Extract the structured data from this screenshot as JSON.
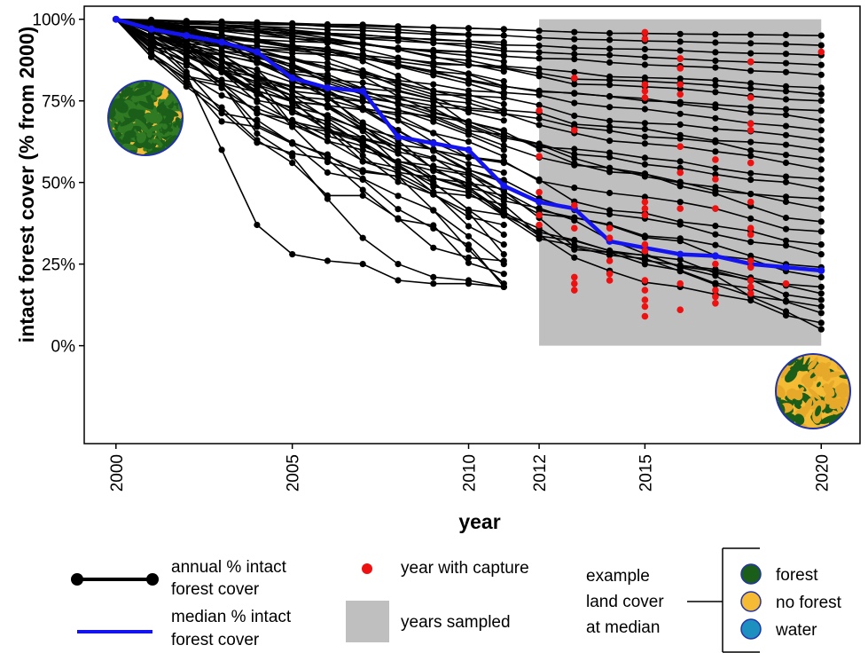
{
  "chart_data": {
    "type": "line",
    "xlabel": "year",
    "ylabel": "intact forest cover (% from 2000)",
    "x_ticks": [
      2000,
      2005,
      2010,
      2012,
      2015,
      2020
    ],
    "y_ticks": [
      {
        "value": 100,
        "label": "100%"
      },
      {
        "value": 75,
        "label": "75%"
      },
      {
        "value": 50,
        "label": "50%"
      },
      {
        "value": 25,
        "label": "25%"
      },
      {
        "value": 0,
        "label": "0%"
      }
    ],
    "xlim": [
      1999.1,
      2021.1
    ],
    "ylim": [
      -30,
      104
    ],
    "sampled_period": [
      2012,
      2020
    ],
    "colors": {
      "series": "#000000",
      "median": "#1414f0",
      "capture": "#ee1111",
      "sampled": "#bfbfbf",
      "forest": "#1a5e1a",
      "no_forest": "#f5bb35",
      "water": "#1e90c0",
      "circle_border": "#2233aa"
    },
    "median": {
      "x": [
        2000,
        2001,
        2002,
        2003,
        2004,
        2005,
        2006,
        2007,
        2008,
        2009,
        2010,
        2011,
        2012,
        2013,
        2014,
        2015,
        2016,
        2017,
        2018,
        2019,
        2020
      ],
      "y": [
        100,
        97,
        95,
        93,
        90,
        82,
        79,
        78,
        64,
        62,
        60,
        49,
        44,
        42,
        32,
        30,
        28,
        27.5,
        25,
        24,
        23
      ]
    },
    "series_end_2011": [
      97,
      95,
      93,
      91,
      89,
      87,
      84,
      81,
      79,
      77,
      74,
      72,
      69,
      66,
      63,
      60,
      58,
      56,
      53,
      50,
      48,
      45,
      42,
      40,
      37,
      34,
      31,
      28,
      25,
      22,
      19,
      18
    ],
    "series_end_2020": [
      95,
      92,
      89,
      86,
      83,
      79,
      77,
      75,
      72,
      69,
      66,
      63,
      60,
      57,
      54,
      51,
      48,
      45,
      42,
      38,
      35,
      31,
      28,
      24,
      21,
      18,
      16,
      14,
      12,
      10,
      7,
      5
    ],
    "notable_series": [
      {
        "x": [
          2000,
          2001,
          2002,
          2003,
          2004,
          2005,
          2006,
          2007,
          2008,
          2009,
          2010,
          2011
        ],
        "y": [
          100,
          93,
          83,
          60,
          37,
          28,
          26,
          25,
          20,
          19,
          19,
          18
        ]
      },
      {
        "x": [
          2000,
          2001,
          2002,
          2003,
          2004,
          2005,
          2006,
          2007,
          2008,
          2009,
          2010,
          2011
        ],
        "y": [
          100,
          90,
          80,
          73,
          63,
          56,
          46,
          46,
          39,
          30,
          27,
          26
        ]
      },
      {
        "x": [
          2000,
          2001,
          2002,
          2003,
          2004,
          2005,
          2006,
          2007,
          2008,
          2009,
          2010,
          2011
        ],
        "y": [
          100,
          96,
          91,
          80,
          65,
          58,
          45,
          33,
          25,
          21,
          20,
          18
        ]
      }
    ],
    "captures": [
      {
        "x": 2012,
        "y": [
          72,
          58,
          47,
          40,
          37
        ]
      },
      {
        "x": 2013,
        "y": [
          82,
          66,
          43,
          36,
          21,
          19,
          17
        ]
      },
      {
        "x": 2014,
        "y": [
          36,
          33,
          26,
          22,
          20
        ]
      },
      {
        "x": 2015,
        "y": [
          96,
          94,
          80,
          78,
          76,
          44,
          42,
          40,
          31,
          29,
          20,
          17,
          14,
          12,
          9
        ]
      },
      {
        "x": 2016,
        "y": [
          88,
          85,
          80,
          77,
          61,
          53,
          42,
          19,
          11
        ]
      },
      {
        "x": 2017,
        "y": [
          57,
          51,
          42,
          25,
          17,
          15,
          13
        ]
      },
      {
        "x": 2018,
        "y": [
          87,
          76,
          68,
          66,
          56,
          44,
          36,
          34,
          26,
          24,
          20,
          18,
          16
        ]
      },
      {
        "x": 2019,
        "y": [
          19
        ]
      },
      {
        "x": 2020,
        "y": [
          90
        ]
      }
    ]
  },
  "legend": {
    "annual_line_1": "annual % intact",
    "annual_line_2": "forest cover",
    "median_line_1": "median % intact",
    "median_line_2": "forest cover",
    "capture": "year with capture",
    "sampled": "years sampled",
    "example_1": "example",
    "example_2": "land cover",
    "example_3": "at median",
    "forest": "forest",
    "no_forest": "no forest",
    "water": "water"
  }
}
